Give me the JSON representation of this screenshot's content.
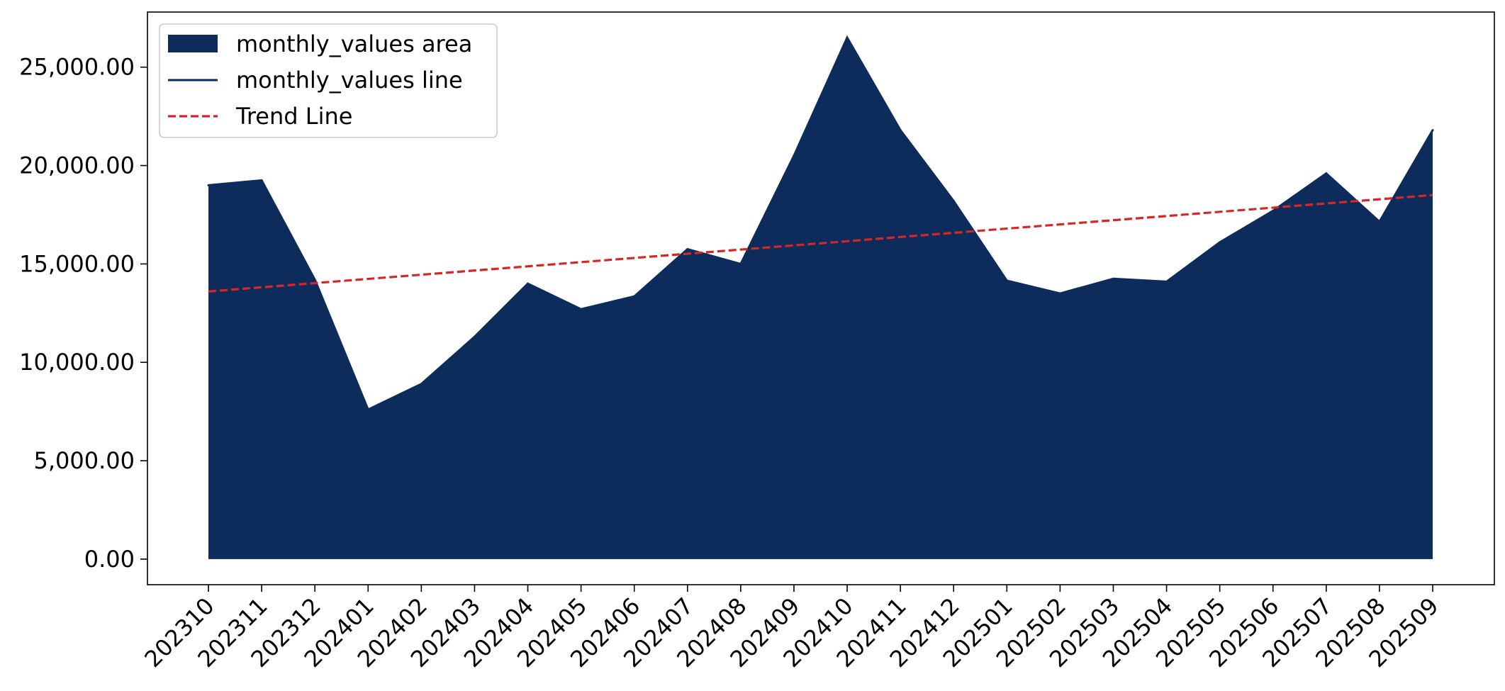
{
  "chart_data": {
    "type": "area",
    "title": "",
    "xlabel": "",
    "ylabel": "",
    "categories": [
      "202310",
      "202311",
      "202312",
      "202401",
      "202402",
      "202403",
      "202404",
      "202405",
      "202406",
      "202407",
      "202408",
      "202409",
      "202410",
      "202411",
      "202412",
      "202501",
      "202502",
      "202503",
      "202504",
      "202505",
      "202506",
      "202507",
      "202508",
      "202509"
    ],
    "series": [
      {
        "name": "monthly_values area",
        "kind": "area",
        "color": "#0d2c5c",
        "values": [
          19000,
          19250,
          14200,
          7600,
          8900,
          11300,
          14000,
          12700,
          13350,
          15750,
          15000,
          20500,
          26500,
          21800,
          18200,
          14150,
          13500,
          14250,
          14100,
          16100,
          17700,
          19600,
          17150,
          21800
        ]
      },
      {
        "name": "monthly_values line",
        "kind": "line",
        "color": "#0d2c5c"
      },
      {
        "name": "Trend Line",
        "kind": "dashed-line",
        "color": "#d62728",
        "start": 13600,
        "end": 18500
      }
    ],
    "ylim": [
      -1300,
      27800
    ],
    "yticks": [
      0,
      5000,
      10000,
      15000,
      20000,
      25000
    ],
    "ytick_labels": [
      "0.00",
      "5,000.00",
      "10,000.00",
      "15,000.00",
      "20,000.00",
      "25,000.00"
    ],
    "grid": false,
    "legend_position": "top-left"
  }
}
